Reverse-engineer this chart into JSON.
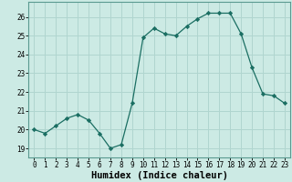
{
  "x": [
    0,
    1,
    2,
    3,
    4,
    5,
    6,
    7,
    8,
    9,
    10,
    11,
    12,
    13,
    14,
    15,
    16,
    17,
    18,
    19,
    20,
    21,
    22,
    23
  ],
  "y": [
    20.0,
    19.8,
    20.2,
    20.6,
    20.8,
    20.5,
    19.8,
    19.0,
    19.2,
    21.4,
    24.9,
    25.4,
    25.1,
    25.0,
    25.5,
    25.9,
    26.2,
    26.2,
    26.2,
    25.1,
    23.3,
    21.9,
    21.8,
    21.4
  ],
  "line_color": "#1a6e62",
  "marker": "D",
  "marker_size": 2.2,
  "bg_color": "#cceae4",
  "grid_color": "#b0d5cf",
  "xlabel": "Humidex (Indice chaleur)",
  "ylabel": "",
  "xlim": [
    -0.5,
    23.5
  ],
  "ylim": [
    18.5,
    26.8
  ],
  "yticks": [
    19,
    20,
    21,
    22,
    23,
    24,
    25,
    26
  ],
  "xticks": [
    0,
    1,
    2,
    3,
    4,
    5,
    6,
    7,
    8,
    9,
    10,
    11,
    12,
    13,
    14,
    15,
    16,
    17,
    18,
    19,
    20,
    21,
    22,
    23
  ],
  "tick_fontsize": 5.5,
  "label_fontsize": 7.5
}
